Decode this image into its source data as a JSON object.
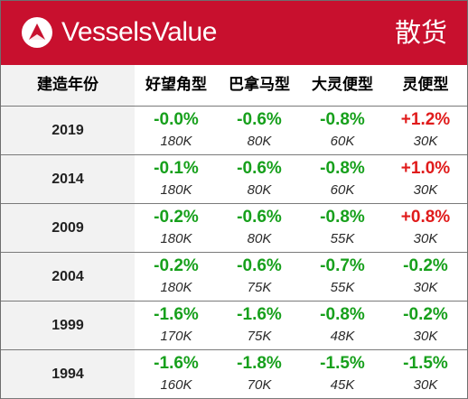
{
  "header": {
    "brand": "VesselsValue",
    "category": "散货",
    "background_color": "#c8102e"
  },
  "columns": {
    "year_label": "建造年份",
    "types": [
      "好望角型",
      "巴拿马型",
      "大灵便型",
      "灵便型"
    ]
  },
  "colors": {
    "negative": "#17a01c",
    "positive": "#e01b1b"
  },
  "rows": [
    {
      "year": "2019",
      "cells": [
        {
          "change": "-0.0%",
          "size": "180K",
          "sign": "neg"
        },
        {
          "change": "-0.6%",
          "size": "80K",
          "sign": "neg"
        },
        {
          "change": "-0.8%",
          "size": "60K",
          "sign": "neg"
        },
        {
          "change": "+1.2%",
          "size": "30K",
          "sign": "pos"
        }
      ]
    },
    {
      "year": "2014",
      "cells": [
        {
          "change": "-0.1%",
          "size": "180K",
          "sign": "neg"
        },
        {
          "change": "-0.6%",
          "size": "80K",
          "sign": "neg"
        },
        {
          "change": "-0.8%",
          "size": "60K",
          "sign": "neg"
        },
        {
          "change": "+1.0%",
          "size": "30K",
          "sign": "pos"
        }
      ]
    },
    {
      "year": "2009",
      "cells": [
        {
          "change": "-0.2%",
          "size": "180K",
          "sign": "neg"
        },
        {
          "change": "-0.6%",
          "size": "80K",
          "sign": "neg"
        },
        {
          "change": "-0.8%",
          "size": "55K",
          "sign": "neg"
        },
        {
          "change": "+0.8%",
          "size": "30K",
          "sign": "pos"
        }
      ]
    },
    {
      "year": "2004",
      "cells": [
        {
          "change": "-0.2%",
          "size": "180K",
          "sign": "neg"
        },
        {
          "change": "-0.6%",
          "size": "75K",
          "sign": "neg"
        },
        {
          "change": "-0.7%",
          "size": "55K",
          "sign": "neg"
        },
        {
          "change": "-0.2%",
          "size": "30K",
          "sign": "neg"
        }
      ]
    },
    {
      "year": "1999",
      "cells": [
        {
          "change": "-1.6%",
          "size": "170K",
          "sign": "neg"
        },
        {
          "change": "-1.6%",
          "size": "75K",
          "sign": "neg"
        },
        {
          "change": "-0.8%",
          "size": "48K",
          "sign": "neg"
        },
        {
          "change": "-0.2%",
          "size": "30K",
          "sign": "neg"
        }
      ]
    },
    {
      "year": "1994",
      "cells": [
        {
          "change": "-1.6%",
          "size": "160K",
          "sign": "neg"
        },
        {
          "change": "-1.8%",
          "size": "70K",
          "sign": "neg"
        },
        {
          "change": "-1.5%",
          "size": "45K",
          "sign": "neg"
        },
        {
          "change": "-1.5%",
          "size": "30K",
          "sign": "neg"
        }
      ]
    }
  ]
}
